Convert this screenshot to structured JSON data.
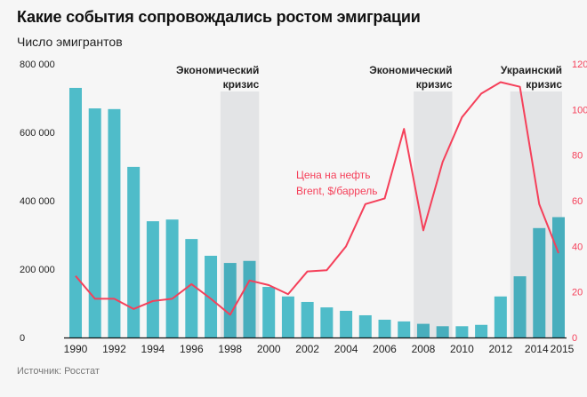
{
  "title": "Какие события сопровождались ростом эмиграции",
  "subtitle": "Число эмигрантов",
  "source": "Источник: Росстат",
  "chart_data": {
    "type": "bar+line",
    "categories": [
      1990,
      1991,
      1992,
      1993,
      1994,
      1995,
      1996,
      1997,
      1998,
      1999,
      2000,
      2001,
      2002,
      2003,
      2004,
      2005,
      2006,
      2007,
      2008,
      2009,
      2010,
      2011,
      2012,
      2013,
      2014,
      2015
    ],
    "x_tick_labels": [
      "1990",
      "1992",
      "1994",
      "1996",
      "1998",
      "2000",
      "2002",
      "2004",
      "2006",
      "2008",
      "2010",
      "2012",
      "2014",
      "2015"
    ],
    "series": [
      {
        "type": "bar",
        "axis": "left",
        "color": "#4fbcc9",
        "highlight_color": "#48aebd",
        "values": [
          730000,
          670000,
          668000,
          499000,
          340000,
          345000,
          288000,
          239000,
          218000,
          224000,
          148000,
          120000,
          104000,
          88000,
          78000,
          65000,
          52000,
          47000,
          40000,
          33000,
          33000,
          37000,
          120000,
          179000,
          320000,
          352000
        ]
      },
      {
        "type": "line",
        "axis": "right",
        "name": "Цена на нефть Brent, $/баррель",
        "color": "#f5405a",
        "values": [
          27,
          17,
          17,
          12.5,
          16,
          17,
          23.4,
          17,
          10,
          25,
          23,
          19,
          29,
          29.5,
          40,
          58.5,
          61,
          91.5,
          47,
          77,
          96.6,
          107,
          112,
          110,
          58.5,
          37
        ]
      }
    ],
    "left_axis": {
      "range": [
        0,
        800000
      ],
      "ticks": [
        "0",
        "200 000",
        "400 000",
        "600 000",
        "800 000"
      ],
      "tick_values": [
        0,
        200000,
        400000,
        600000,
        800000
      ]
    },
    "right_axis": {
      "range": [
        0,
        120
      ],
      "ticks": [
        "0",
        "20",
        "40",
        "60",
        "80",
        "100",
        "120"
      ],
      "tick_values": [
        0,
        20,
        40,
        60,
        80,
        100,
        120
      ],
      "color": "#f5405a"
    },
    "annotations": [
      {
        "label_line1": "Экономический",
        "label_line2": "кризис",
        "from": 1997.5,
        "to": 1999.5
      },
      {
        "label_line1": "Экономический",
        "label_line2": "кризис",
        "from": 2007.5,
        "to": 2009.5
      },
      {
        "label_line1": "Украинский",
        "label_line2": "кризис",
        "from": 2012.5,
        "to": 2015.5
      }
    ],
    "line_label_line1": "Цена на нефть",
    "line_label_line2": "Brent, $/баррель",
    "shade_color": "#e3e4e6",
    "grid": false
  }
}
